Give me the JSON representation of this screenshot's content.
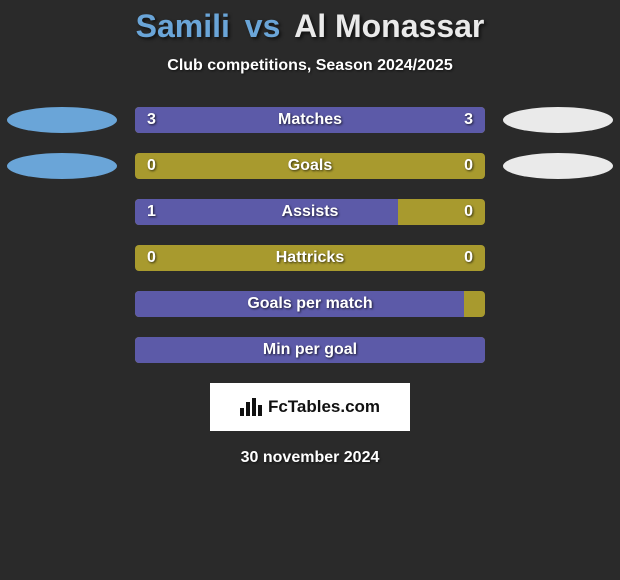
{
  "colors": {
    "background": "#2a2a2a",
    "player1": "#6aa5d8",
    "player2": "#eaeaea",
    "bar_bg": "#a89a2e",
    "bar_fill": "#5c5aa8",
    "text": "#ffffff"
  },
  "title": {
    "player1": "Samili",
    "vs": "vs",
    "player2": "Al Monassar"
  },
  "subtitle": "Club competitions, Season 2024/2025",
  "stats": [
    {
      "label": "Matches",
      "left_val": "3",
      "right_val": "3",
      "left_pct": 50,
      "right_pct": 50,
      "show_ovals": true,
      "show_vals": true
    },
    {
      "label": "Goals",
      "left_val": "0",
      "right_val": "0",
      "left_pct": 0,
      "right_pct": 0,
      "show_ovals": true,
      "show_vals": true
    },
    {
      "label": "Assists",
      "left_val": "1",
      "right_val": "0",
      "left_pct": 75,
      "right_pct": 0,
      "show_ovals": false,
      "show_vals": true
    },
    {
      "label": "Hattricks",
      "left_val": "0",
      "right_val": "0",
      "left_pct": 0,
      "right_pct": 0,
      "show_ovals": false,
      "show_vals": true
    },
    {
      "label": "Goals per match",
      "left_val": "",
      "right_val": "",
      "left_pct": 94,
      "right_pct": 0,
      "show_ovals": false,
      "show_vals": false
    },
    {
      "label": "Min per goal",
      "left_val": "",
      "right_val": "",
      "left_pct": 100,
      "right_pct": 0,
      "show_ovals": false,
      "show_vals": false
    }
  ],
  "logo": {
    "text": "FcTables.com"
  },
  "date": "30 november 2024"
}
